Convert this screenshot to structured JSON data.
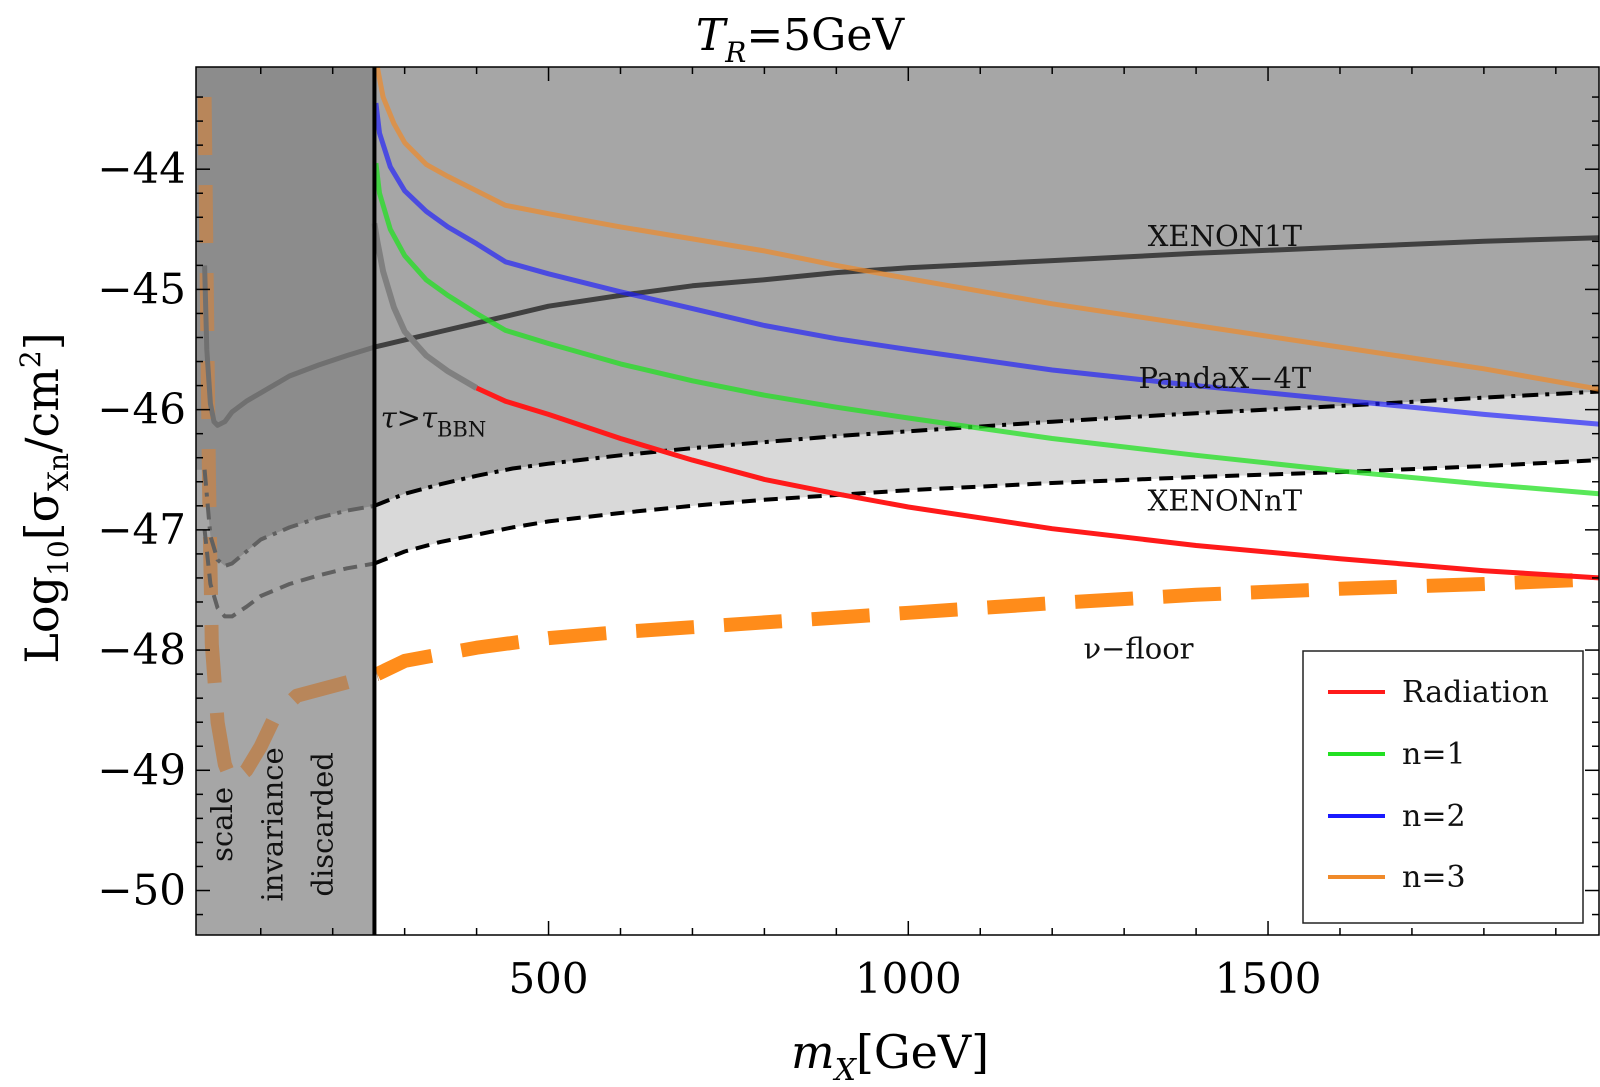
{
  "chart_data": {
    "type": "line",
    "title": "T_R=5GeV",
    "title_parts": {
      "symbol": "T",
      "subscript": "R",
      "rest": "=5GeV"
    },
    "xlabel": "m_X[GeV]",
    "xlabel_parts": {
      "symbol": "m",
      "subscript": "X",
      "rest": "[GeV]"
    },
    "ylabel": "Log10[σXn/cm2]",
    "ylabel_parts": {
      "pre": "Log",
      "sub1": "10",
      "mid": "[σ",
      "sub2": "Xn",
      "post": "/cm",
      "sup": "2",
      "close": "]"
    },
    "xlim": [
      10,
      1960
    ],
    "ylim": [
      -50.37,
      -43.15
    ],
    "xticks": [
      500,
      1000,
      1500
    ],
    "xtick_labels": [
      "500",
      "1000",
      "1500"
    ],
    "yticks": [
      -44,
      -45,
      -46,
      -47,
      -48,
      -49,
      -50
    ],
    "ytick_labels": [
      "−44",
      "−45",
      "−46",
      "−47",
      "−48",
      "−49",
      "−50"
    ],
    "series": [
      {
        "name": "Radiation",
        "color": "#ff1a1a",
        "x": [
          400,
          440,
          500,
          600,
          700,
          800,
          900,
          1000,
          1200,
          1400,
          1600,
          1800,
          1960
        ],
        "y": [
          -45.82,
          -45.93,
          -46.04,
          -46.24,
          -46.42,
          -46.58,
          -46.7,
          -46.81,
          -46.99,
          -47.13,
          -47.24,
          -47.34,
          -47.4
        ]
      },
      {
        "name": "n=1",
        "color": "#22e022",
        "x": [
          260,
          265,
          280,
          300,
          330,
          360,
          400,
          440,
          500,
          600,
          700,
          800,
          900,
          1000,
          1200,
          1400,
          1600,
          1800,
          1960
        ],
        "y": [
          -43.95,
          -44.2,
          -44.5,
          -44.72,
          -44.92,
          -45.05,
          -45.2,
          -45.34,
          -45.45,
          -45.62,
          -45.76,
          -45.88,
          -45.98,
          -46.07,
          -46.24,
          -46.38,
          -46.51,
          -46.62,
          -46.7
        ]
      },
      {
        "name": "n=2",
        "color": "#1a1aff",
        "x": [
          260,
          265,
          280,
          300,
          330,
          360,
          400,
          440,
          500,
          600,
          700,
          800,
          900,
          1000,
          1200,
          1400,
          1600,
          1800,
          1960
        ],
        "y": [
          -43.45,
          -43.7,
          -43.98,
          -44.18,
          -44.35,
          -44.48,
          -44.62,
          -44.77,
          -44.87,
          -45.02,
          -45.16,
          -45.3,
          -45.41,
          -45.5,
          -45.67,
          -45.8,
          -45.92,
          -46.04,
          -46.12
        ]
      },
      {
        "name": "n=3",
        "color": "#f08a2a",
        "x": [
          262,
          270,
          285,
          300,
          330,
          360,
          400,
          440,
          500,
          600,
          700,
          800,
          900,
          1000,
          1200,
          1400,
          1600,
          1800,
          1960
        ],
        "y": [
          -43.15,
          -43.4,
          -43.62,
          -43.78,
          -43.96,
          -44.06,
          -44.18,
          -44.3,
          -44.37,
          -44.48,
          -44.58,
          -44.68,
          -44.8,
          -44.91,
          -45.12,
          -45.3,
          -45.48,
          -45.66,
          -45.83
        ]
      },
      {
        "name": "XENON1T",
        "color": "#404040",
        "x": [
          258,
          300,
          350,
          400,
          450,
          500,
          600,
          700,
          800,
          900,
          1000,
          1100,
          1200,
          1400,
          1600,
          1800,
          1960
        ],
        "y": [
          -45.48,
          -45.42,
          -45.35,
          -45.28,
          -45.21,
          -45.14,
          -45.05,
          -44.97,
          -44.92,
          -44.86,
          -44.82,
          -44.79,
          -44.76,
          -44.7,
          -44.65,
          -44.6,
          -44.57
        ]
      },
      {
        "name": "PandaX-4T",
        "color": "#000000",
        "x": [
          258,
          300,
          350,
          400,
          450,
          500,
          600,
          700,
          800,
          900,
          1000,
          1200,
          1400,
          1600,
          1800,
          1960
        ],
        "y": [
          -46.8,
          -46.7,
          -46.62,
          -46.55,
          -46.49,
          -46.45,
          -46.38,
          -46.32,
          -46.27,
          -46.22,
          -46.18,
          -46.1,
          -46.03,
          -45.97,
          -45.9,
          -45.85
        ]
      },
      {
        "name": "XENONnT",
        "color": "#000000",
        "x": [
          258,
          300,
          350,
          400,
          450,
          500,
          600,
          700,
          800,
          900,
          1000,
          1200,
          1400,
          1600,
          1800,
          1960
        ],
        "y": [
          -47.28,
          -47.18,
          -47.1,
          -47.04,
          -46.98,
          -46.93,
          -46.86,
          -46.8,
          -46.75,
          -46.71,
          -46.67,
          -46.61,
          -46.56,
          -46.52,
          -46.47,
          -46.42
        ]
      },
      {
        "name": "ν−floor",
        "color": "#ff8c1a",
        "x": [
          262,
          300,
          400,
          500,
          600,
          700,
          800,
          900,
          1000,
          1200,
          1400,
          1600,
          1800,
          1960
        ],
        "y": [
          -48.2,
          -48.09,
          -47.98,
          -47.9,
          -47.85,
          -47.81,
          -47.77,
          -47.73,
          -47.69,
          -47.61,
          -47.54,
          -47.49,
          -47.45,
          -47.41
        ]
      },
      {
        "name": "τ>τBBN boundary",
        "color": "#808080",
        "x": [
          258,
          262,
          270,
          285,
          300,
          330,
          360,
          400
        ],
        "y": [
          -44.45,
          -44.6,
          -44.85,
          -45.15,
          -45.35,
          -45.55,
          -45.68,
          -45.82
        ]
      },
      {
        "name": "XENON1T (discarded region)",
        "color": "#707070",
        "x": [
          22,
          25,
          30,
          35,
          40,
          50,
          60,
          80,
          100,
          140,
          180,
          220,
          258
        ],
        "y": [
          -44.8,
          -45.5,
          -45.95,
          -46.1,
          -46.13,
          -46.1,
          -46.02,
          -45.93,
          -45.86,
          -45.72,
          -45.63,
          -45.55,
          -45.48
        ]
      },
      {
        "name": "PandaX-4T (discarded region)",
        "color": "#606060",
        "x": [
          22,
          30,
          40,
          50,
          60,
          80,
          100,
          140,
          180,
          220,
          258
        ],
        "y": [
          -46.5,
          -47.05,
          -47.25,
          -47.3,
          -47.28,
          -47.18,
          -47.08,
          -46.98,
          -46.9,
          -46.84,
          -46.8
        ]
      },
      {
        "name": "XENONnT (discarded region)",
        "color": "#606060",
        "x": [
          22,
          30,
          40,
          50,
          60,
          80,
          100,
          140,
          180,
          220,
          258
        ],
        "y": [
          -47.0,
          -47.45,
          -47.65,
          -47.72,
          -47.72,
          -47.64,
          -47.55,
          -47.45,
          -47.38,
          -47.32,
          -47.28
        ]
      },
      {
        "name": "ν−floor (discarded region)",
        "color": "#b8865a",
        "x": [
          22,
          25,
          28,
          32,
          40,
          50,
          60,
          80,
          100,
          120,
          150,
          200,
          262
        ],
        "y": [
          -43.4,
          -45.0,
          -46.6,
          -47.95,
          -48.6,
          -48.95,
          -49.1,
          -49.0,
          -48.8,
          -48.55,
          -48.38,
          -48.3,
          -48.2
        ]
      }
    ],
    "regions": [
      {
        "name": "scale invariance discarded",
        "x_range": [
          10,
          258
        ],
        "color": "#8c8c8c"
      },
      {
        "name": "τ>τBBN",
        "color": "#a6a6a6"
      },
      {
        "name": "Excluded (XENON1T/PandaX-4T)",
        "color": "#a6a6a6"
      },
      {
        "name": "Projected (XENONnT)",
        "color": "#d9d9d9"
      }
    ],
    "annotations": [
      {
        "text": "XENON1T",
        "x": 1440,
        "y": -44.64
      },
      {
        "text": "PandaX−4T",
        "x": 1440,
        "y": -45.82
      },
      {
        "text": "XENONnT",
        "x": 1440,
        "y": -46.84
      },
      {
        "text": "ν−floor",
        "x": 1320,
        "y": -48.07,
        "color": "#ff8c1a"
      },
      {
        "text_main": "τ>τ",
        "text_sub": "BBN",
        "x": 340,
        "y": -46.15
      },
      {
        "text": "scale",
        "x": 60,
        "y": -49.45,
        "rotated": true
      },
      {
        "text": "invariance",
        "x": 130,
        "y": -49.45,
        "rotated": true
      },
      {
        "text": "discarded",
        "x": 200,
        "y": -49.45,
        "rotated": true
      }
    ],
    "legend": {
      "position": "bottom-right",
      "entries": [
        {
          "label": "Radiation",
          "color": "#ff1a1a"
        },
        {
          "label": "n=1",
          "color": "#22e022"
        },
        {
          "label": "n=2",
          "color": "#1a1aff"
        },
        {
          "label": "n=3",
          "color": "#f08a2a"
        }
      ]
    },
    "grid": false
  }
}
